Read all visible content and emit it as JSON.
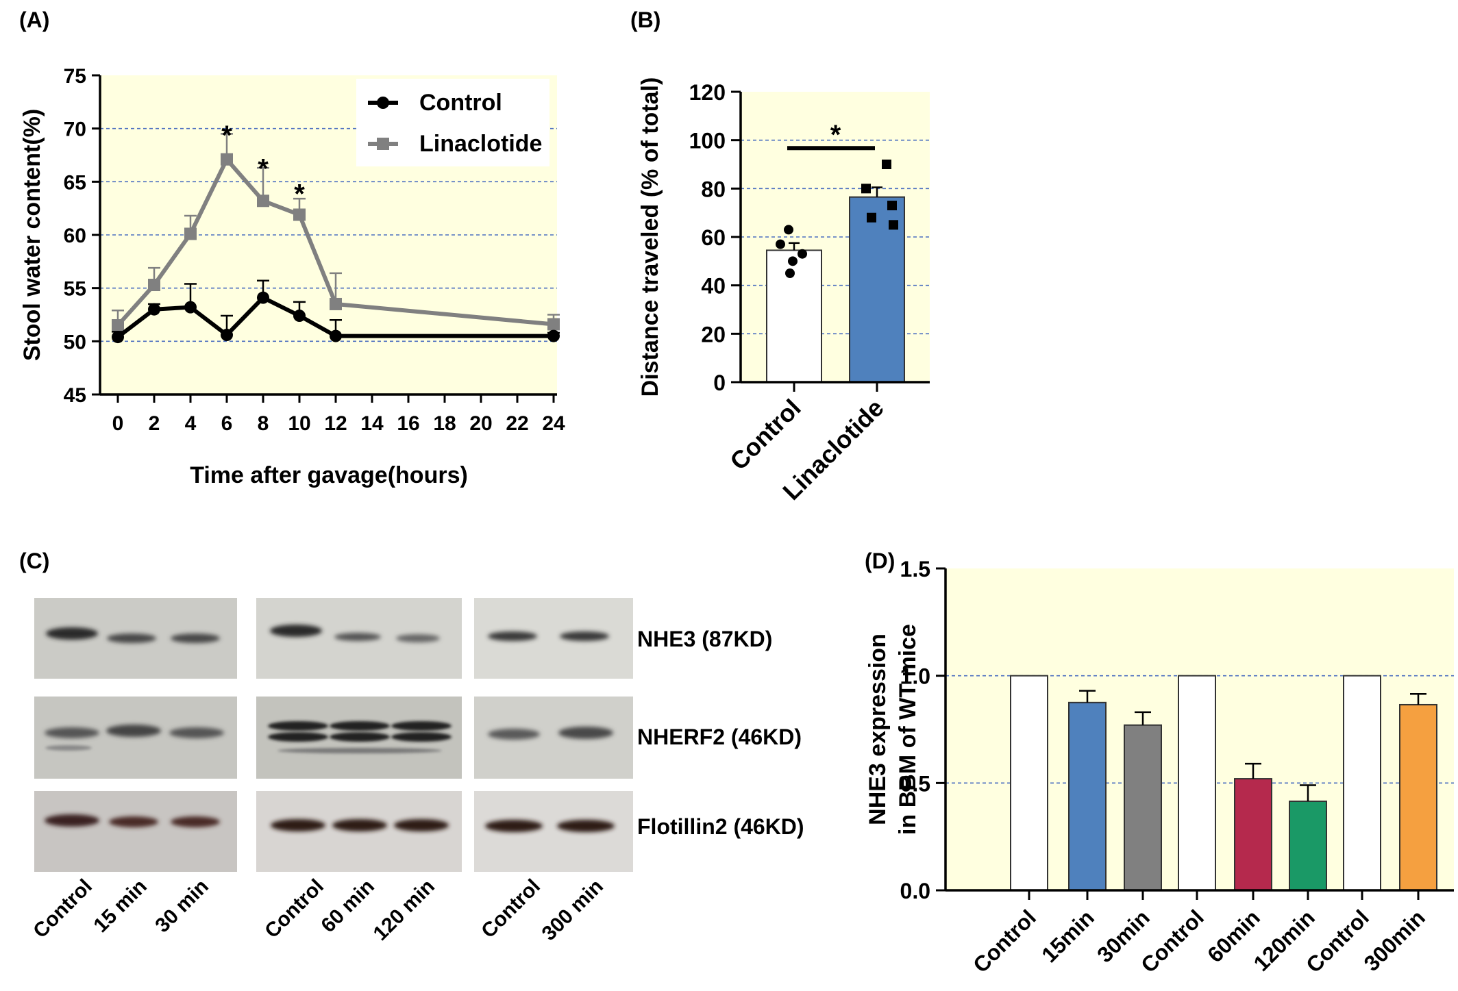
{
  "chart_data": [
    {
      "panel": "(A)",
      "type": "line",
      "xlabel": "Time after gavage(hours)",
      "ylabel": "Stool water content(%)",
      "ylim": [
        45,
        75
      ],
      "yticks": [
        45,
        50,
        55,
        60,
        65,
        70,
        75
      ],
      "xtick_labels": [
        "0",
        "2",
        "4",
        "6",
        "8",
        "10",
        "12",
        "14",
        "16",
        "18",
        "20",
        "22",
        "24"
      ],
      "grid": "horizontal dashed",
      "legend": "top-right",
      "series": [
        {
          "name": "Control",
          "color": "#000000",
          "marker": "circle",
          "x": [
            "0",
            "2",
            "4",
            "6",
            "8",
            "10",
            "12",
            "24"
          ],
          "values": [
            50.4,
            53.0,
            53.2,
            50.6,
            54.1,
            52.4,
            50.5,
            50.5
          ],
          "errors": [
            0.5,
            0.5,
            2.2,
            1.8,
            1.6,
            1.3,
            1.5,
            0.3
          ]
        },
        {
          "name": "Linaclotide",
          "color": "#808080",
          "marker": "square",
          "x": [
            "0",
            "2",
            "4",
            "6",
            "8",
            "10",
            "12",
            "24"
          ],
          "values": [
            51.5,
            55.3,
            60.1,
            67.1,
            63.2,
            61.9,
            53.5,
            51.6
          ],
          "errors": [
            1.4,
            1.6,
            1.7,
            2.4,
            3.1,
            1.5,
            2.9,
            0.9
          ]
        }
      ],
      "annotations": [
        {
          "text": "*",
          "x": "6",
          "y": 69.9
        },
        {
          "text": "*",
          "x": "8",
          "y": 66.8
        },
        {
          "text": "*",
          "x": "10",
          "y": 64.4
        }
      ]
    },
    {
      "panel": "(B)",
      "type": "bar",
      "ylabel": "Distance traveled (% of total)",
      "ylim": [
        0,
        120
      ],
      "yticks": [
        0,
        20,
        40,
        60,
        80,
        100,
        120
      ],
      "grid": "horizontal dashed",
      "categories": [
        "Control",
        "Linaclotide"
      ],
      "values": [
        54.5,
        76.5
      ],
      "errors": [
        3,
        4
      ],
      "colors": [
        "#ffffff",
        "#4f81bd"
      ],
      "points": [
        [
          63,
          57,
          53,
          50,
          45
        ],
        [
          90,
          80,
          73,
          68,
          65
        ]
      ],
      "significance": {
        "text": "*",
        "between": [
          "Control",
          "Linaclotide"
        ],
        "y": 99
      }
    },
    {
      "panel": "(C)",
      "type": "table",
      "rows": [
        "NHE3 (87KD)",
        "NHERF2 (46KD)",
        "Flotillin2 (46KD)"
      ],
      "groups": [
        {
          "lanes": [
            "Control",
            "15 min",
            "30 min"
          ]
        },
        {
          "lanes": [
            "Control",
            "60 min",
            "120 min"
          ]
        },
        {
          "lanes": [
            "Control",
            "300 min"
          ]
        }
      ]
    },
    {
      "panel": "(D)",
      "type": "bar",
      "ylabel_lines": [
        "NHE3 expression",
        "in BBM of WT mice"
      ],
      "ylim": [
        0,
        1.5
      ],
      "yticks": [
        "0.0",
        "0.5",
        "1.0",
        "1.5"
      ],
      "grid": "horizontal dashed",
      "categories": [
        "Control",
        "15min",
        "30min",
        "Control",
        "60min",
        "120min",
        "Control",
        "300min"
      ],
      "values": [
        1.0,
        0.875,
        0.77,
        1.0,
        0.52,
        0.415,
        1.0,
        0.865
      ],
      "errors": [
        0,
        0.055,
        0.06,
        0,
        0.07,
        0.075,
        0,
        0.05
      ],
      "colors": [
        "#ffffff",
        "#4f81bd",
        "#808080",
        "#ffffff",
        "#b5294d",
        "#1a9966",
        "#ffffff",
        "#f5a040"
      ]
    }
  ]
}
